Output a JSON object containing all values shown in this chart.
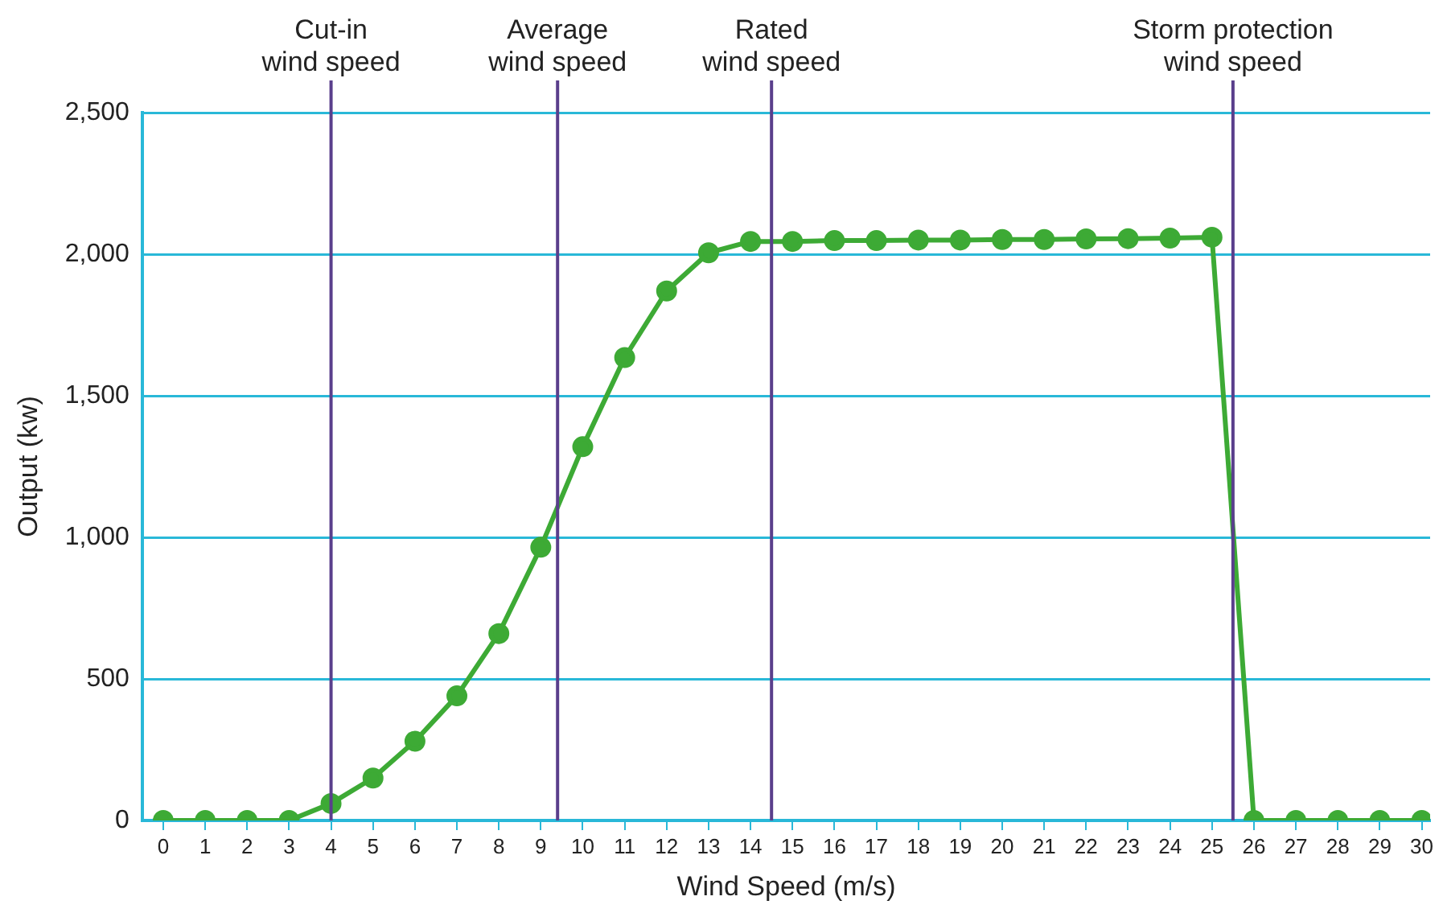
{
  "chart_data": {
    "type": "line",
    "xlabel": "Wind Speed (m/s)",
    "ylabel": "Output (kw)",
    "x": [
      0,
      1,
      2,
      3,
      4,
      5,
      6,
      7,
      8,
      9,
      10,
      11,
      12,
      13,
      14,
      15,
      16,
      17,
      18,
      19,
      20,
      21,
      22,
      23,
      24,
      25,
      26,
      27,
      28,
      29,
      30
    ],
    "series": [
      {
        "color": "#3daa35",
        "values": [
          0,
          0,
          0,
          0,
          60,
          150,
          280,
          440,
          660,
          965,
          1320,
          1635,
          1870,
          2005,
          2045,
          2045,
          2048,
          2048,
          2050,
          2050,
          2052,
          2052,
          2054,
          2055,
          2057,
          2060,
          0,
          0,
          0,
          0,
          0
        ]
      }
    ],
    "xlim": [
      -0.5,
      30.2
    ],
    "xticks": [
      0,
      1,
      2,
      3,
      4,
      5,
      6,
      7,
      8,
      9,
      10,
      11,
      12,
      13,
      14,
      15,
      16,
      17,
      18,
      19,
      20,
      21,
      22,
      23,
      24,
      25,
      26,
      27,
      28,
      29,
      30
    ],
    "ylim": [
      0,
      2500
    ],
    "yticks": [
      {
        "value": 0,
        "label": "0"
      },
      {
        "value": 500,
        "label": "500"
      },
      {
        "value": 1000,
        "label": "1,000"
      },
      {
        "value": 1500,
        "label": "1,500"
      },
      {
        "value": 2000,
        "label": "2,000"
      },
      {
        "value": 2500,
        "label": "2,500"
      }
    ],
    "grid": "y",
    "legend": false,
    "marker": "circle",
    "line_style": "solid",
    "ref_lines": [
      {
        "axis": "x",
        "value": 4,
        "label": "Cut-in\nwind speed",
        "color": "#5a3f8c"
      },
      {
        "axis": "x",
        "value": 9.4,
        "label": "Average\nwind speed",
        "color": "#5a3f8c"
      },
      {
        "axis": "x",
        "value": 14.5,
        "label": "Rated\nwind speed",
        "color": "#5a3f8c"
      },
      {
        "axis": "x",
        "value": 25.5,
        "label": "Storm protection\nwind speed",
        "color": "#5a3f8c"
      }
    ]
  }
}
